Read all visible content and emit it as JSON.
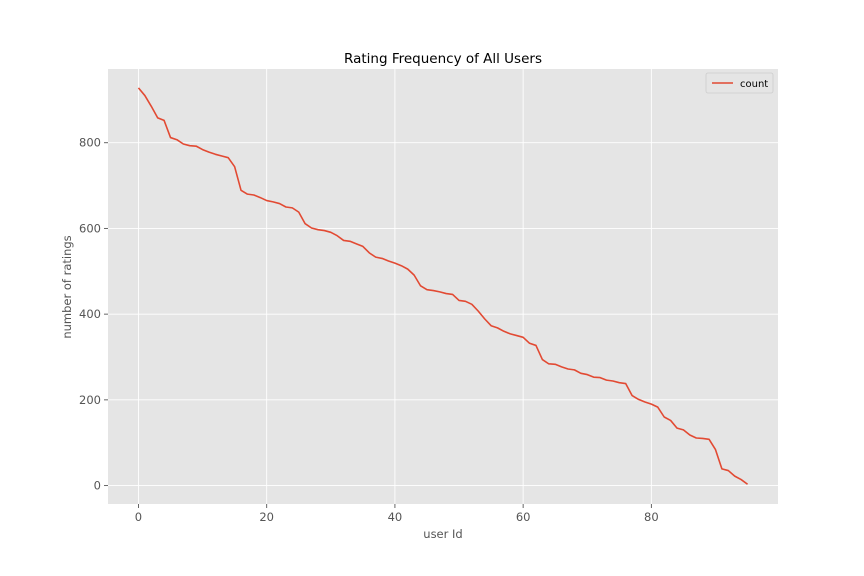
{
  "chart_data": {
    "type": "line",
    "title": "Rating Frequency of All Users",
    "xlabel": "user Id",
    "ylabel": "number of ratings",
    "xlim": [
      -4.75,
      99.75
    ],
    "ylim": [
      -43,
      972
    ],
    "x_ticks": [
      0,
      20,
      40,
      60,
      80
    ],
    "y_ticks": [
      0,
      200,
      400,
      600,
      800
    ],
    "grid": true,
    "legend_position": "top-right",
    "colors": {
      "line": "#e24a33",
      "plot_bg": "#e5e5e5",
      "grid": "#ffffff"
    },
    "series": [
      {
        "name": "count",
        "x": [
          0,
          1,
          2,
          3,
          4,
          5,
          6,
          7,
          8,
          9,
          10,
          11,
          12,
          13,
          14,
          15,
          16,
          17,
          18,
          19,
          20,
          21,
          22,
          23,
          24,
          25,
          26,
          27,
          28,
          29,
          30,
          31,
          32,
          33,
          34,
          35,
          36,
          37,
          38,
          39,
          40,
          41,
          42,
          43,
          44,
          45,
          46,
          47,
          48,
          49,
          50,
          51,
          52,
          53,
          54,
          55,
          56,
          57,
          58,
          59,
          60,
          61,
          62,
          63,
          64,
          65,
          66,
          67,
          68,
          69,
          70,
          71,
          72,
          73,
          74,
          75,
          76,
          77,
          78,
          79,
          80,
          81,
          82,
          83,
          84,
          85,
          86,
          87,
          88,
          89,
          90,
          91,
          92,
          93,
          94,
          95
        ],
        "values": [
          928,
          910,
          885,
          858,
          852,
          812,
          807,
          797,
          793,
          792,
          784,
          778,
          773,
          769,
          765,
          744,
          689,
          680,
          678,
          672,
          665,
          662,
          658,
          650,
          648,
          638,
          611,
          601,
          597,
          595,
          591,
          583,
          572,
          570,
          564,
          558,
          543,
          533,
          530,
          524,
          519,
          513,
          505,
          491,
          466,
          457,
          455,
          452,
          448,
          446,
          432,
          430,
          423,
          407,
          389,
          373,
          368,
          360,
          354,
          350,
          346,
          332,
          327,
          294,
          284,
          283,
          277,
          272,
          270,
          262,
          259,
          253,
          252,
          246,
          244,
          240,
          238,
          210,
          201,
          195,
          190,
          183,
          160,
          152,
          134,
          130,
          118,
          111,
          110,
          108,
          84,
          39,
          35,
          22,
          14,
          3
        ]
      }
    ]
  }
}
